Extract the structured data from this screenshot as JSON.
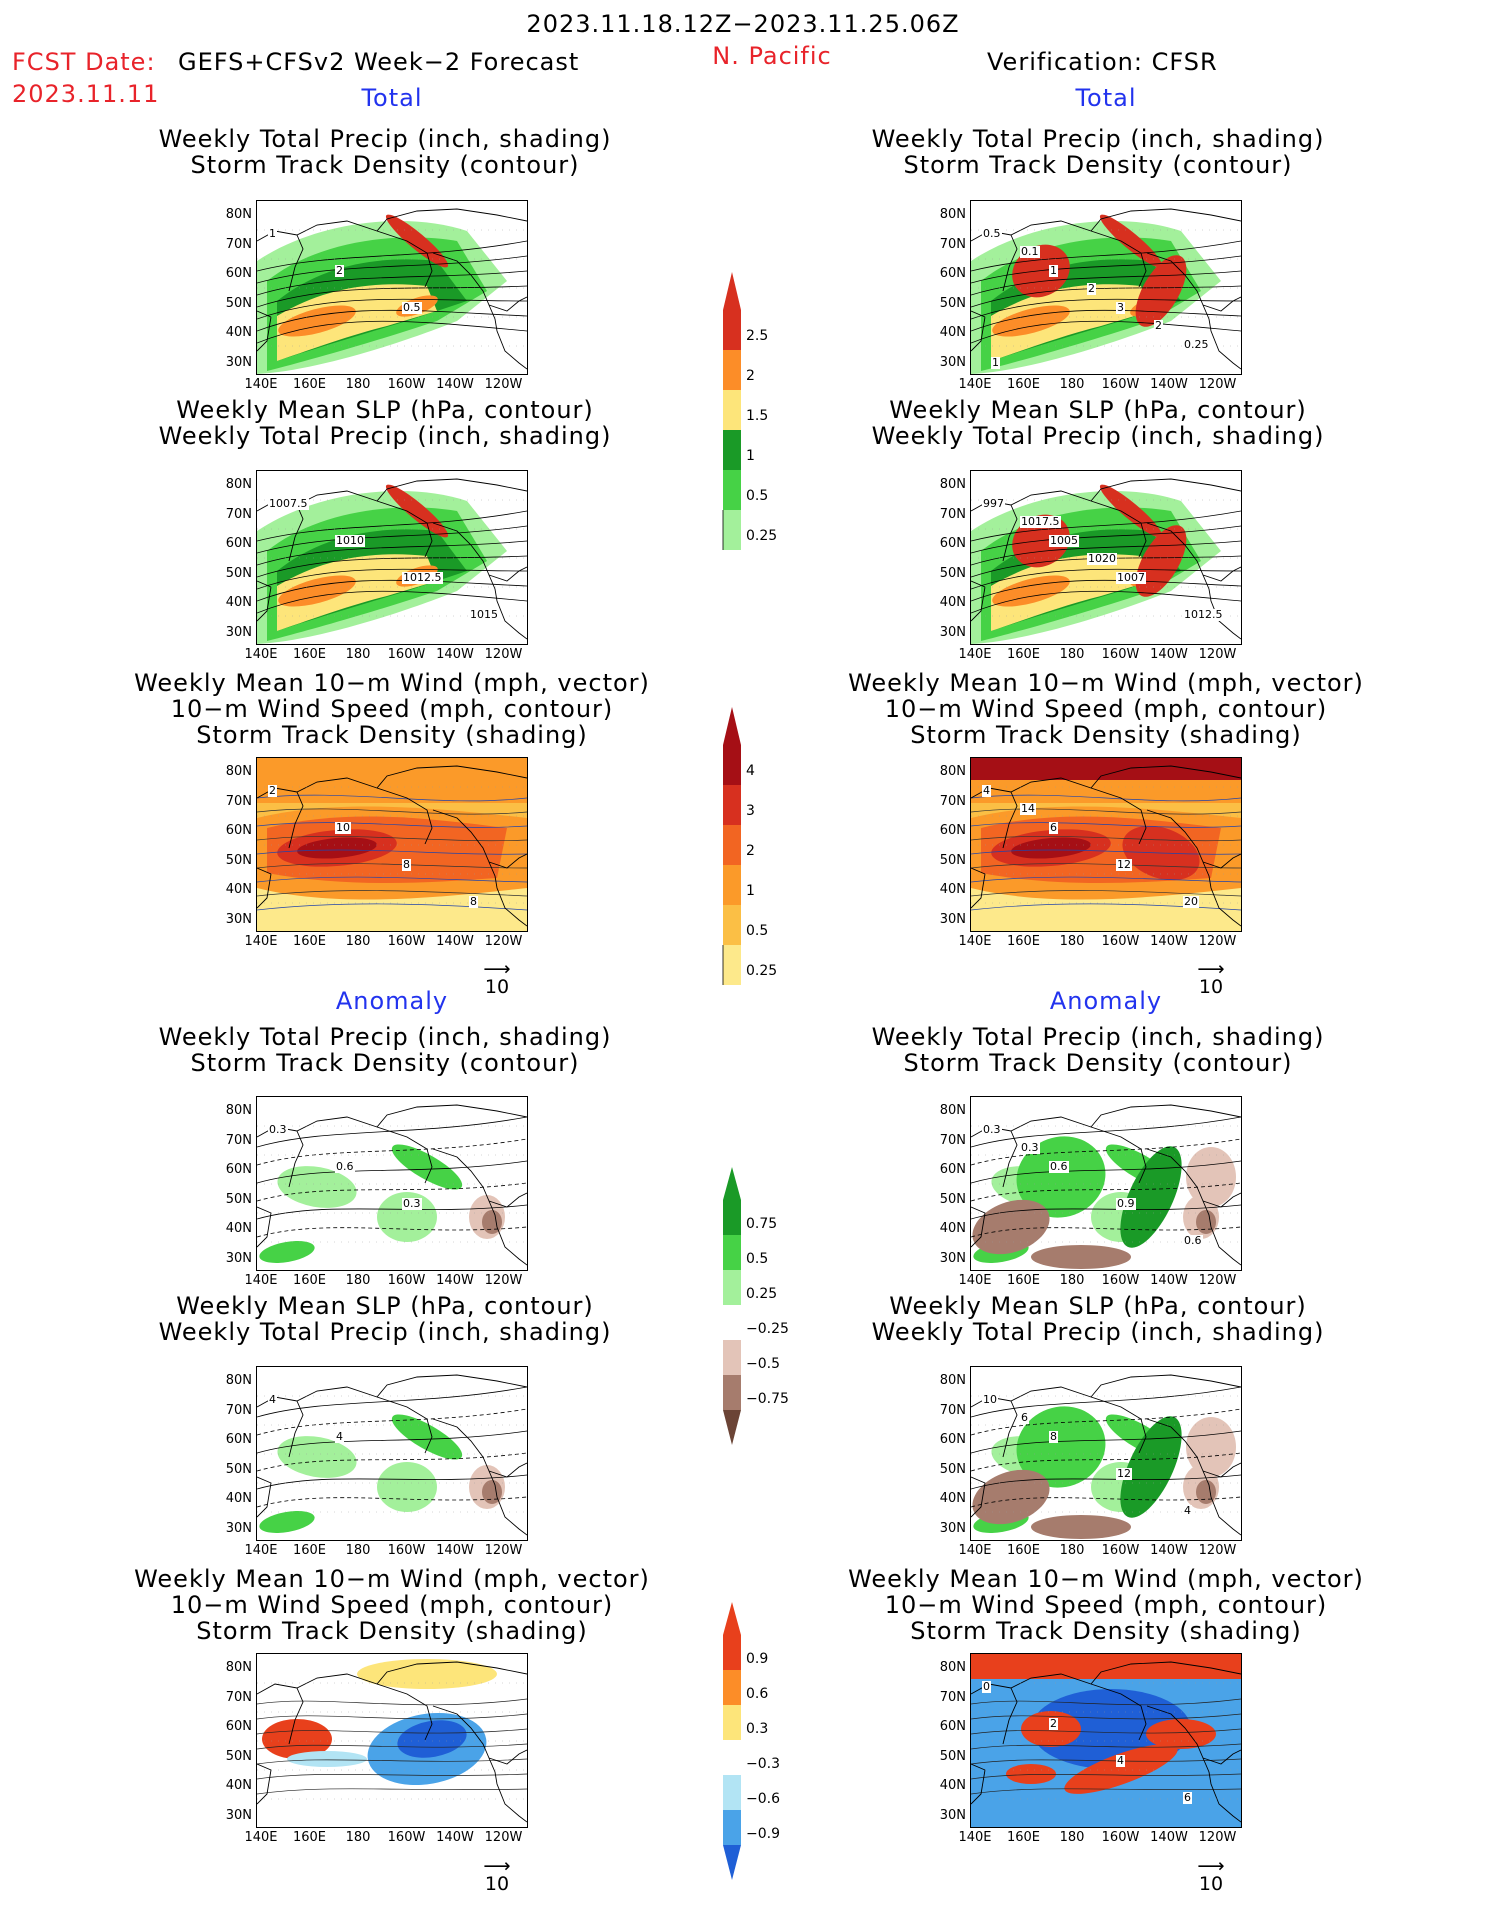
{
  "header": {
    "period": "2023.11.18.12Z−2023.11.25.06Z",
    "region": "N. Pacific",
    "fcst_label": "FCST Date:",
    "fcst_model": "GEFS+CFSv2 Week−2 Forecast",
    "fcst_date": "2023.11.11",
    "verification": "Verification: CFSR"
  },
  "sections": {
    "total": "Total",
    "anomaly": "Anomaly"
  },
  "panel_titles": {
    "precip_storm": "Weekly Total Precip (inch, shading)\nStorm Track Density (contour)",
    "slp_precip": "Weekly Mean SLP (hPa, contour)\nWeekly Total Precip (inch, shading)",
    "wind_storm": "Weekly Mean 10−m Wind (mph, vector)\n10−m Wind Speed (mph, contour)\nStorm Track Density (shading)"
  },
  "axes": {
    "lat_labels": [
      "80N",
      "70N",
      "60N",
      "50N",
      "40N",
      "30N"
    ],
    "lon_labels": [
      "140E",
      "160E",
      "180",
      "160W",
      "140W",
      "120W"
    ]
  },
  "vector_reference": "10",
  "colorbars": {
    "total_precip": {
      "labels": [
        "2.5",
        "2",
        "1.5",
        "1",
        "0.5",
        "0.25"
      ],
      "colors": [
        "#d7301f",
        "#fc8d28",
        "#fde57a",
        "#1a9a27",
        "#46d246",
        "#a3f09b"
      ]
    },
    "total_storm": {
      "labels": [
        "4",
        "3",
        "2",
        "1",
        "0.5",
        "0.25"
      ],
      "colors": [
        "#a50f15",
        "#d7301f",
        "#f26522",
        "#fb9a29",
        "#fbbf45",
        "#fde98b"
      ]
    },
    "anom_precip": {
      "labels": [
        "0.75",
        "0.5",
        "0.25",
        "−0.25",
        "−0.5",
        "−0.75"
      ],
      "colors": [
        "#1a9a27",
        "#46d246",
        "#a3f09b",
        "#ffffff",
        "#e3c4b8",
        "#a67c6d",
        "#6b4436"
      ]
    },
    "anom_storm": {
      "labels": [
        "0.9",
        "0.6",
        "0.3",
        "−0.3",
        "−0.6",
        "−0.9"
      ],
      "colors": [
        "#e8401c",
        "#fc8d28",
        "#fde57a",
        "#ffffff",
        "#b2e4f4",
        "#4aa3e8",
        "#1f5fd6"
      ]
    }
  },
  "contour_labels": {
    "fcst_total_precip": [
      "1",
      "2",
      "0.5"
    ],
    "ver_total_precip": [
      "0.5",
      "1",
      "3",
      "0.25",
      "0.1",
      "2",
      "2",
      "1"
    ],
    "fcst_total_slp": [
      "1007.5",
      "1010",
      "1012.5",
      "1015"
    ],
    "ver_total_slp": [
      "997",
      "1005",
      "1007",
      "1012.5",
      "1017.5",
      "1020"
    ],
    "fcst_total_wind": [
      "2",
      "10",
      "8",
      "8"
    ],
    "ver_total_wind": [
      "4",
      "6",
      "12",
      "20",
      "14"
    ],
    "fcst_anom_precip": [
      "0.3",
      "0.6",
      "0.3"
    ],
    "ver_anom_precip": [
      "0.3",
      "0.6",
      "0.9",
      "0.6",
      "0.3"
    ],
    "fcst_anom_slp": [
      "4",
      "4"
    ],
    "ver_anom_slp": [
      "10",
      "8",
      "12",
      "4",
      "6"
    ],
    "fcst_anom_wind": [],
    "ver_anom_wind": [
      "0",
      "2",
      "4",
      "6"
    ]
  }
}
